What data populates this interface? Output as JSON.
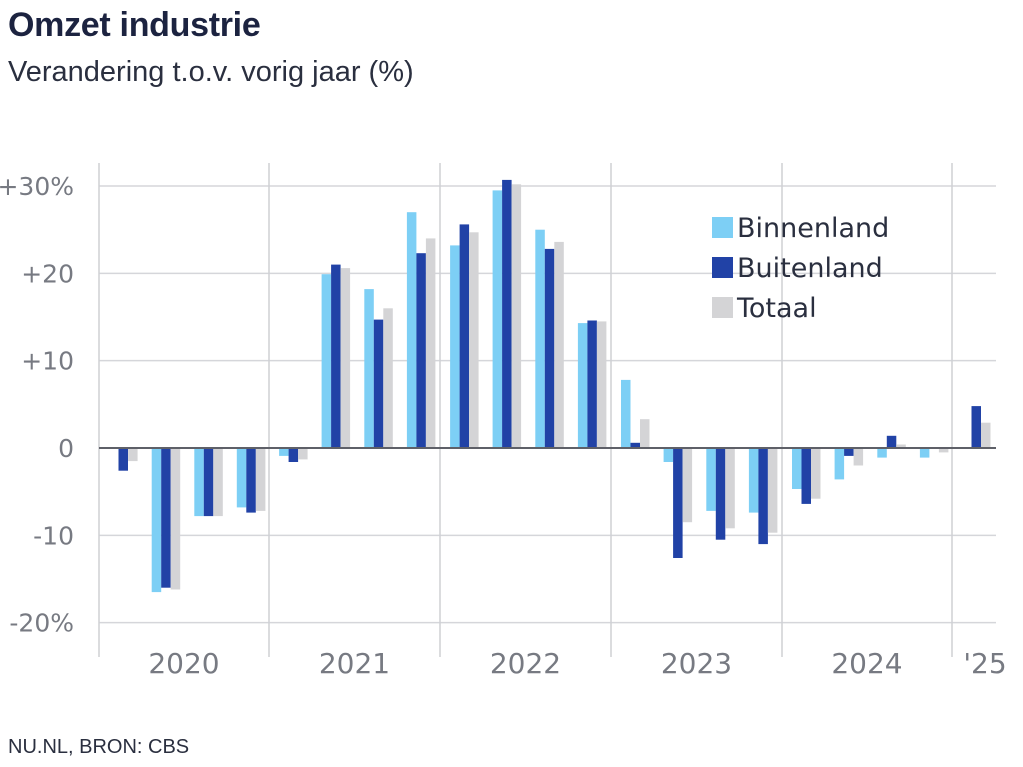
{
  "title": "Omzet industrie",
  "subtitle": "Verandering t.o.v. vorig jaar (%)",
  "source": "NU.NL, BRON: CBS",
  "colors": {
    "binnenland": "#7dcff5",
    "buitenland": "#2142a6",
    "totaal": "#d4d4d6"
  },
  "chart_data": {
    "type": "bar",
    "title": "Omzet industrie",
    "subtitle": "Verandering t.o.v. vorig jaar (%)",
    "ylim": [
      -22,
      31
    ],
    "y_ticks": [
      30,
      20,
      10,
      0,
      -10,
      -20
    ],
    "y_tick_labels": [
      "+30%",
      "+20",
      "+10",
      "0",
      "-10",
      "-20%"
    ],
    "grid": true,
    "legend_position": "top-right",
    "year_labels": [
      "2020",
      "2021",
      "2022",
      "2023",
      "2024",
      "'25"
    ],
    "quarters_per_year": 4,
    "categories": [
      "2020 Q1",
      "2020 Q2",
      "2020 Q3",
      "2020 Q4",
      "2021 Q1",
      "2021 Q2",
      "2021 Q3",
      "2021 Q4",
      "2022 Q1",
      "2022 Q2",
      "2022 Q3",
      "2022 Q4",
      "2023 Q1",
      "2023 Q2",
      "2023 Q3",
      "2023 Q4",
      "2024 Q1",
      "2024 Q2",
      "2024 Q3",
      "2024 Q4",
      "2025 Q1"
    ],
    "series": [
      {
        "name": "Binnenland",
        "color": "#7dcff5",
        "values": [
          0,
          -16.5,
          -7.8,
          -6.8,
          -0.9,
          19.9,
          18.2,
          27.0,
          23.2,
          29.5,
          25.0,
          14.3,
          7.8,
          -1.6,
          -7.2,
          -7.4,
          -4.7,
          -3.6,
          -1.1,
          -1.1,
          0
        ]
      },
      {
        "name": "Buitenland",
        "color": "#2142a6",
        "values": [
          -2.6,
          -16.0,
          -7.8,
          -7.4,
          -1.6,
          21.0,
          14.7,
          22.3,
          25.6,
          30.7,
          22.8,
          14.6,
          0.6,
          -12.6,
          -10.5,
          -11.0,
          -6.4,
          -0.9,
          1.4,
          0,
          4.8
        ]
      },
      {
        "name": "Totaal",
        "color": "#d4d4d6",
        "values": [
          -1.5,
          -16.2,
          -7.8,
          -7.2,
          -1.3,
          20.6,
          16.0,
          24.0,
          24.7,
          30.2,
          23.6,
          14.5,
          3.3,
          -8.5,
          -9.2,
          -9.7,
          -5.8,
          -2.0,
          0.4,
          -0.5,
          2.9
        ]
      }
    ]
  }
}
